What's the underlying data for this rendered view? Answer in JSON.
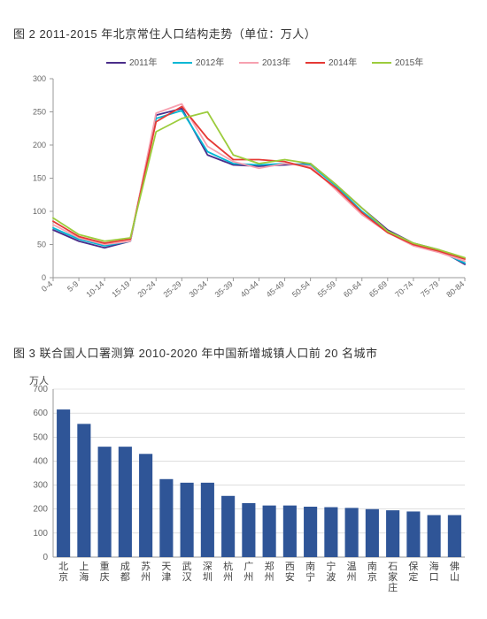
{
  "fig2": {
    "title": "图 2  2011-2015 年北京常住人口结构走势（单位：万人）",
    "type": "line",
    "x_categories": [
      "0-4",
      "5-9",
      "10-14",
      "15-19",
      "20-24",
      "25-29",
      "30-34",
      "35-39",
      "40-44",
      "45-49",
      "50-54",
      "55-59",
      "60-64",
      "65-69",
      "70-74",
      "75-79",
      "80-84"
    ],
    "ylim": [
      0,
      300
    ],
    "ytick_step": 50,
    "title_fontsize": 13,
    "label_fontsize": 9,
    "background_color": "#ffffff",
    "axis_color": "#999999",
    "legend_fontsize": 10,
    "series": [
      {
        "name": "2011年",
        "color": "#4a2d8a",
        "values": [
          72,
          55,
          45,
          55,
          245,
          255,
          185,
          170,
          168,
          170,
          172,
          140,
          105,
          72,
          52,
          42,
          20
        ]
      },
      {
        "name": "2012年",
        "color": "#00b7d4",
        "values": [
          75,
          58,
          48,
          55,
          240,
          252,
          190,
          172,
          170,
          172,
          170,
          138,
          100,
          70,
          50,
          40,
          22
        ]
      },
      {
        "name": "2013年",
        "color": "#f7a1b0",
        "values": [
          80,
          60,
          50,
          55,
          248,
          262,
          198,
          175,
          165,
          172,
          168,
          132,
          95,
          68,
          48,
          38,
          25
        ]
      },
      {
        "name": "2014年",
        "color": "#e53935",
        "values": [
          85,
          62,
          52,
          58,
          235,
          258,
          210,
          178,
          178,
          175,
          165,
          135,
          98,
          68,
          50,
          40,
          28
        ]
      },
      {
        "name": "2015年",
        "color": "#9ccc3c",
        "values": [
          90,
          65,
          55,
          60,
          220,
          240,
          250,
          185,
          172,
          178,
          172,
          140,
          105,
          70,
          52,
          42,
          30
        ]
      }
    ]
  },
  "fig3": {
    "title": "图 3  联合国人口署测算 2010-2020 年中国新增城镇人口前 20 名城市",
    "type": "bar",
    "y_unit": "万人",
    "ylim": [
      0,
      700
    ],
    "ytick_step": 100,
    "title_fontsize": 13,
    "label_fontsize": 11,
    "bar_color": "#2f5597",
    "background_color": "#ffffff",
    "axis_color": "#999999",
    "grid_color": "#cccccc",
    "bar_width": 0.65,
    "categories": [
      "北京",
      "上海",
      "重庆",
      "成都",
      "苏州",
      "天津",
      "武汉",
      "深圳",
      "杭州",
      "广州",
      "郑州",
      "西安",
      "南宁",
      "宁波",
      "温州",
      "南京",
      "石家庄",
      "保定",
      "海口",
      "佛山"
    ],
    "values": [
      615,
      555,
      460,
      460,
      430,
      325,
      310,
      310,
      255,
      225,
      215,
      215,
      210,
      208,
      205,
      200,
      195,
      190,
      175,
      175
    ]
  }
}
